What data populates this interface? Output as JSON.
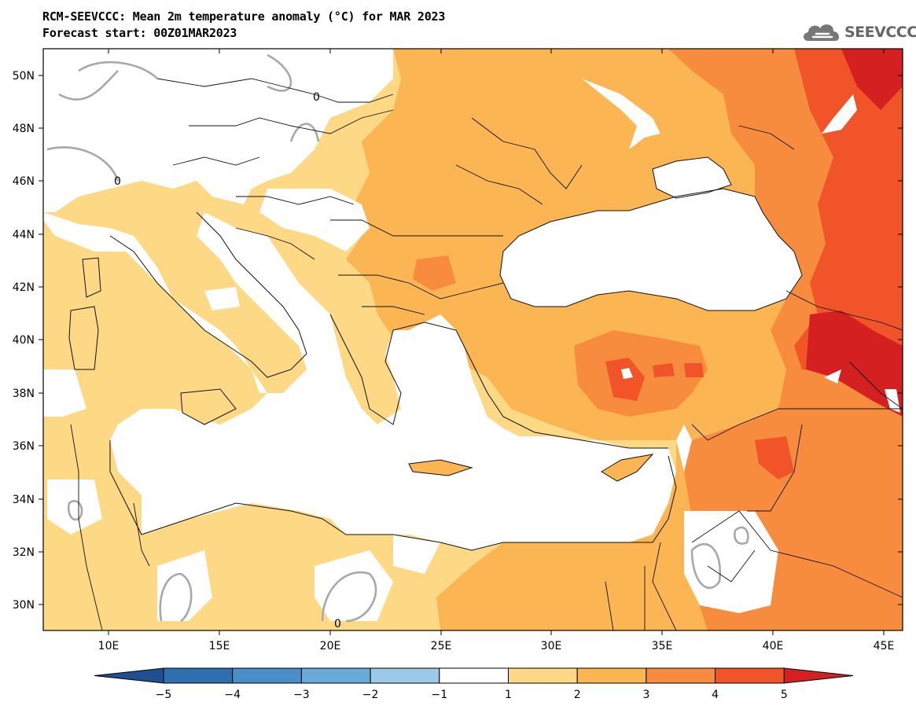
{
  "title_line1": "RCM-SEEVCCC: Mean 2m temperature anomaly (°C) for MAR 2023",
  "title_line2": "Forecast start: 00Z01MAR2023",
  "logo_text": "SEEVCCC",
  "map": {
    "lat_labels": [
      "50N",
      "48N",
      "46N",
      "44N",
      "42N",
      "40N",
      "38N",
      "36N",
      "34N",
      "32N",
      "30N"
    ],
    "lon_labels": [
      "10E",
      "15E",
      "20E",
      "25E",
      "30E",
      "35E",
      "40E",
      "45E"
    ],
    "contour_labels": [
      "0",
      "0",
      "0"
    ]
  },
  "colorbar": {
    "labels": [
      "−5",
      "−4",
      "−3",
      "−2",
      "−1",
      "1",
      "2",
      "3",
      "4",
      "5"
    ],
    "colors": [
      "#1f4f8f",
      "#2e6fb0",
      "#4a8ec8",
      "#6aaad9",
      "#9cc9e6",
      "#ffffff",
      "#fdd985",
      "#fbb552",
      "#f88c3e",
      "#f2542a",
      "#d42020"
    ]
  }
}
